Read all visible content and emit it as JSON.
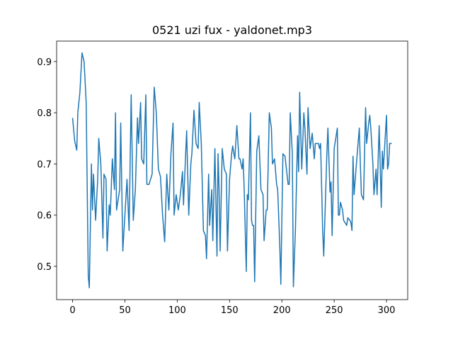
{
  "chart_data": {
    "type": "line",
    "title": "0521 uzi fux - yaldonet.mp3",
    "x": [
      0,
      2,
      4,
      5,
      7,
      9,
      11,
      13,
      15,
      16,
      18,
      19,
      20,
      22,
      24,
      25,
      27,
      29,
      30,
      32,
      33,
      35,
      36,
      38,
      40,
      41,
      42,
      45,
      46,
      48,
      50,
      52,
      54,
      56,
      58,
      60,
      62,
      63,
      65,
      66,
      68,
      70,
      71,
      73,
      76,
      78,
      80,
      82,
      84,
      86,
      88,
      90,
      92,
      94,
      96,
      97,
      99,
      101,
      103,
      105,
      106,
      109,
      111,
      113,
      114,
      116,
      118,
      120,
      121,
      123,
      125,
      127,
      128,
      130,
      131,
      133,
      134,
      136,
      138,
      139,
      140,
      141,
      143,
      145,
      147,
      148,
      150,
      152,
      153,
      155,
      157,
      159,
      160,
      162,
      163,
      164,
      166,
      167,
      168,
      170,
      171,
      172,
      173,
      174,
      176,
      178,
      180,
      182,
      183,
      185,
      186,
      188,
      190,
      191,
      193,
      195,
      196,
      198,
      199,
      201,
      203,
      206,
      207,
      208,
      210,
      211,
      213,
      215,
      216,
      217,
      219,
      221,
      222,
      224,
      225,
      227,
      229,
      231,
      232,
      235,
      236,
      237,
      239,
      240,
      243,
      244,
      246,
      247,
      248,
      250,
      253,
      254,
      255,
      256,
      258,
      259,
      262,
      263,
      265,
      266,
      267,
      268,
      269,
      272,
      274,
      275,
      276,
      278,
      280,
      281,
      283,
      284,
      285,
      287,
      288,
      290,
      291,
      293,
      295,
      296,
      297,
      300,
      301,
      302,
      303,
      305
    ],
    "values": [
      0.79,
      0.745,
      0.727,
      0.8,
      0.84,
      0.917,
      0.9,
      0.82,
      0.48,
      0.458,
      0.7,
      0.61,
      0.68,
      0.59,
      0.67,
      0.75,
      0.7,
      0.555,
      0.68,
      0.67,
      0.53,
      0.62,
      0.6,
      0.71,
      0.65,
      0.8,
      0.61,
      0.65,
      0.78,
      0.53,
      0.6,
      0.67,
      0.57,
      0.835,
      0.59,
      0.65,
      0.79,
      0.74,
      0.82,
      0.71,
      0.7,
      0.835,
      0.66,
      0.66,
      0.68,
      0.85,
      0.8,
      0.69,
      0.675,
      0.6,
      0.548,
      0.68,
      0.61,
      0.72,
      0.78,
      0.6,
      0.64,
      0.61,
      0.64,
      0.685,
      0.62,
      0.765,
      0.6,
      0.7,
      0.72,
      0.805,
      0.74,
      0.73,
      0.82,
      0.74,
      0.57,
      0.56,
      0.515,
      0.68,
      0.58,
      0.65,
      0.55,
      0.73,
      0.52,
      0.72,
      0.65,
      0.53,
      0.73,
      0.69,
      0.68,
      0.53,
      0.67,
      0.72,
      0.735,
      0.71,
      0.775,
      0.71,
      0.71,
      0.69,
      0.71,
      0.65,
      0.49,
      0.64,
      0.63,
      0.8,
      0.59,
      0.58,
      0.58,
      0.47,
      0.725,
      0.755,
      0.65,
      0.64,
      0.55,
      0.61,
      0.61,
      0.8,
      0.77,
      0.7,
      0.71,
      0.66,
      0.65,
      0.54,
      0.465,
      0.72,
      0.715,
      0.66,
      0.66,
      0.8,
      0.72,
      0.46,
      0.575,
      0.755,
      0.685,
      0.84,
      0.69,
      0.8,
      0.77,
      0.68,
      0.81,
      0.73,
      0.76,
      0.71,
      0.74,
      0.74,
      0.73,
      0.74,
      0.57,
      0.52,
      0.72,
      0.77,
      0.645,
      0.665,
      0.56,
      0.73,
      0.77,
      0.6,
      0.6,
      0.625,
      0.61,
      0.59,
      0.58,
      0.595,
      0.59,
      0.585,
      0.57,
      0.715,
      0.64,
      0.72,
      0.77,
      0.7,
      0.64,
      0.63,
      0.81,
      0.74,
      0.78,
      0.795,
      0.77,
      0.7,
      0.64,
      0.69,
      0.64,
      0.775,
      0.615,
      0.725,
      0.69,
      0.795,
      0.69,
      0.7,
      0.74,
      0.74
    ],
    "color": "#1f77b4",
    "xlim": [
      -15.25,
      320.25
    ],
    "ylim": [
      0.435,
      0.94
    ],
    "xticks": [
      0,
      50,
      100,
      150,
      200,
      250,
      300
    ],
    "yticks": [
      0.5,
      0.6,
      0.7,
      0.8,
      0.9
    ]
  }
}
